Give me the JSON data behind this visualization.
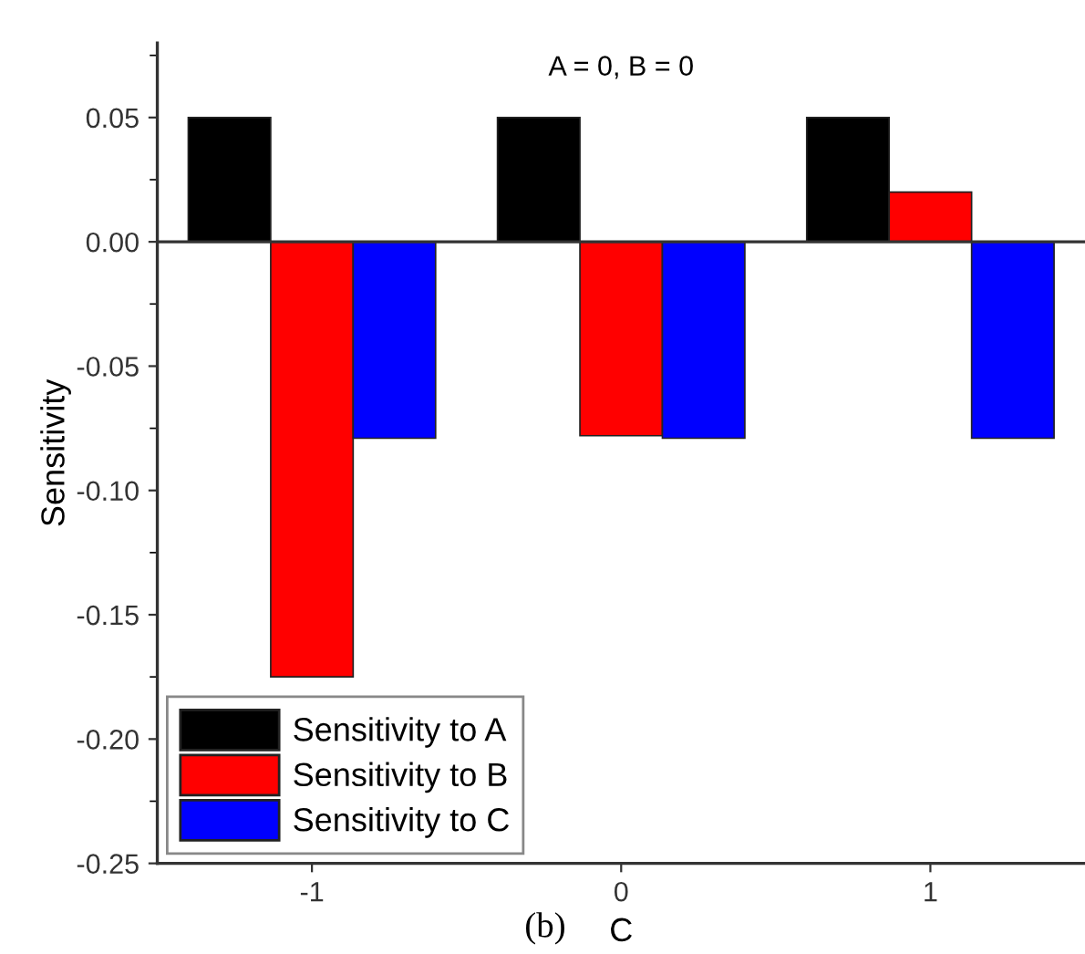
{
  "chart_data": {
    "type": "bar",
    "xlabel": "C",
    "ylabel": "Sensitivity",
    "categories": [
      "-1",
      "0",
      "1"
    ],
    "series": [
      {
        "name": "Sensitivity to A",
        "color": "#000000",
        "values": [
          0.05,
          0.05,
          0.05
        ]
      },
      {
        "name": "Sensitivity to B",
        "color": "#ff0000",
        "values": [
          -0.175,
          -0.078,
          0.02
        ]
      },
      {
        "name": "Sensitivity to C",
        "color": "#0000ff",
        "values": [
          -0.079,
          -0.079,
          -0.079
        ]
      }
    ],
    "ylim": [
      -0.25,
      0.08
    ],
    "yticks": [
      {
        "value": -0.25,
        "label": "-0.25"
      },
      {
        "value": -0.2,
        "label": "-0.20"
      },
      {
        "value": -0.15,
        "label": "-0.15"
      },
      {
        "value": -0.1,
        "label": "-0.10"
      },
      {
        "value": -0.05,
        "label": "-0.05"
      },
      {
        "value": 0,
        "label": "0.00"
      },
      {
        "value": 0.05,
        "label": "0.05"
      }
    ],
    "ref_lines": [
      {
        "axis": "y",
        "value": 0,
        "color": "#333333"
      }
    ],
    "annotations": [
      "A = 0, B = 0",
      "(b)"
    ],
    "legend": "bottom left",
    "grid": false
  }
}
